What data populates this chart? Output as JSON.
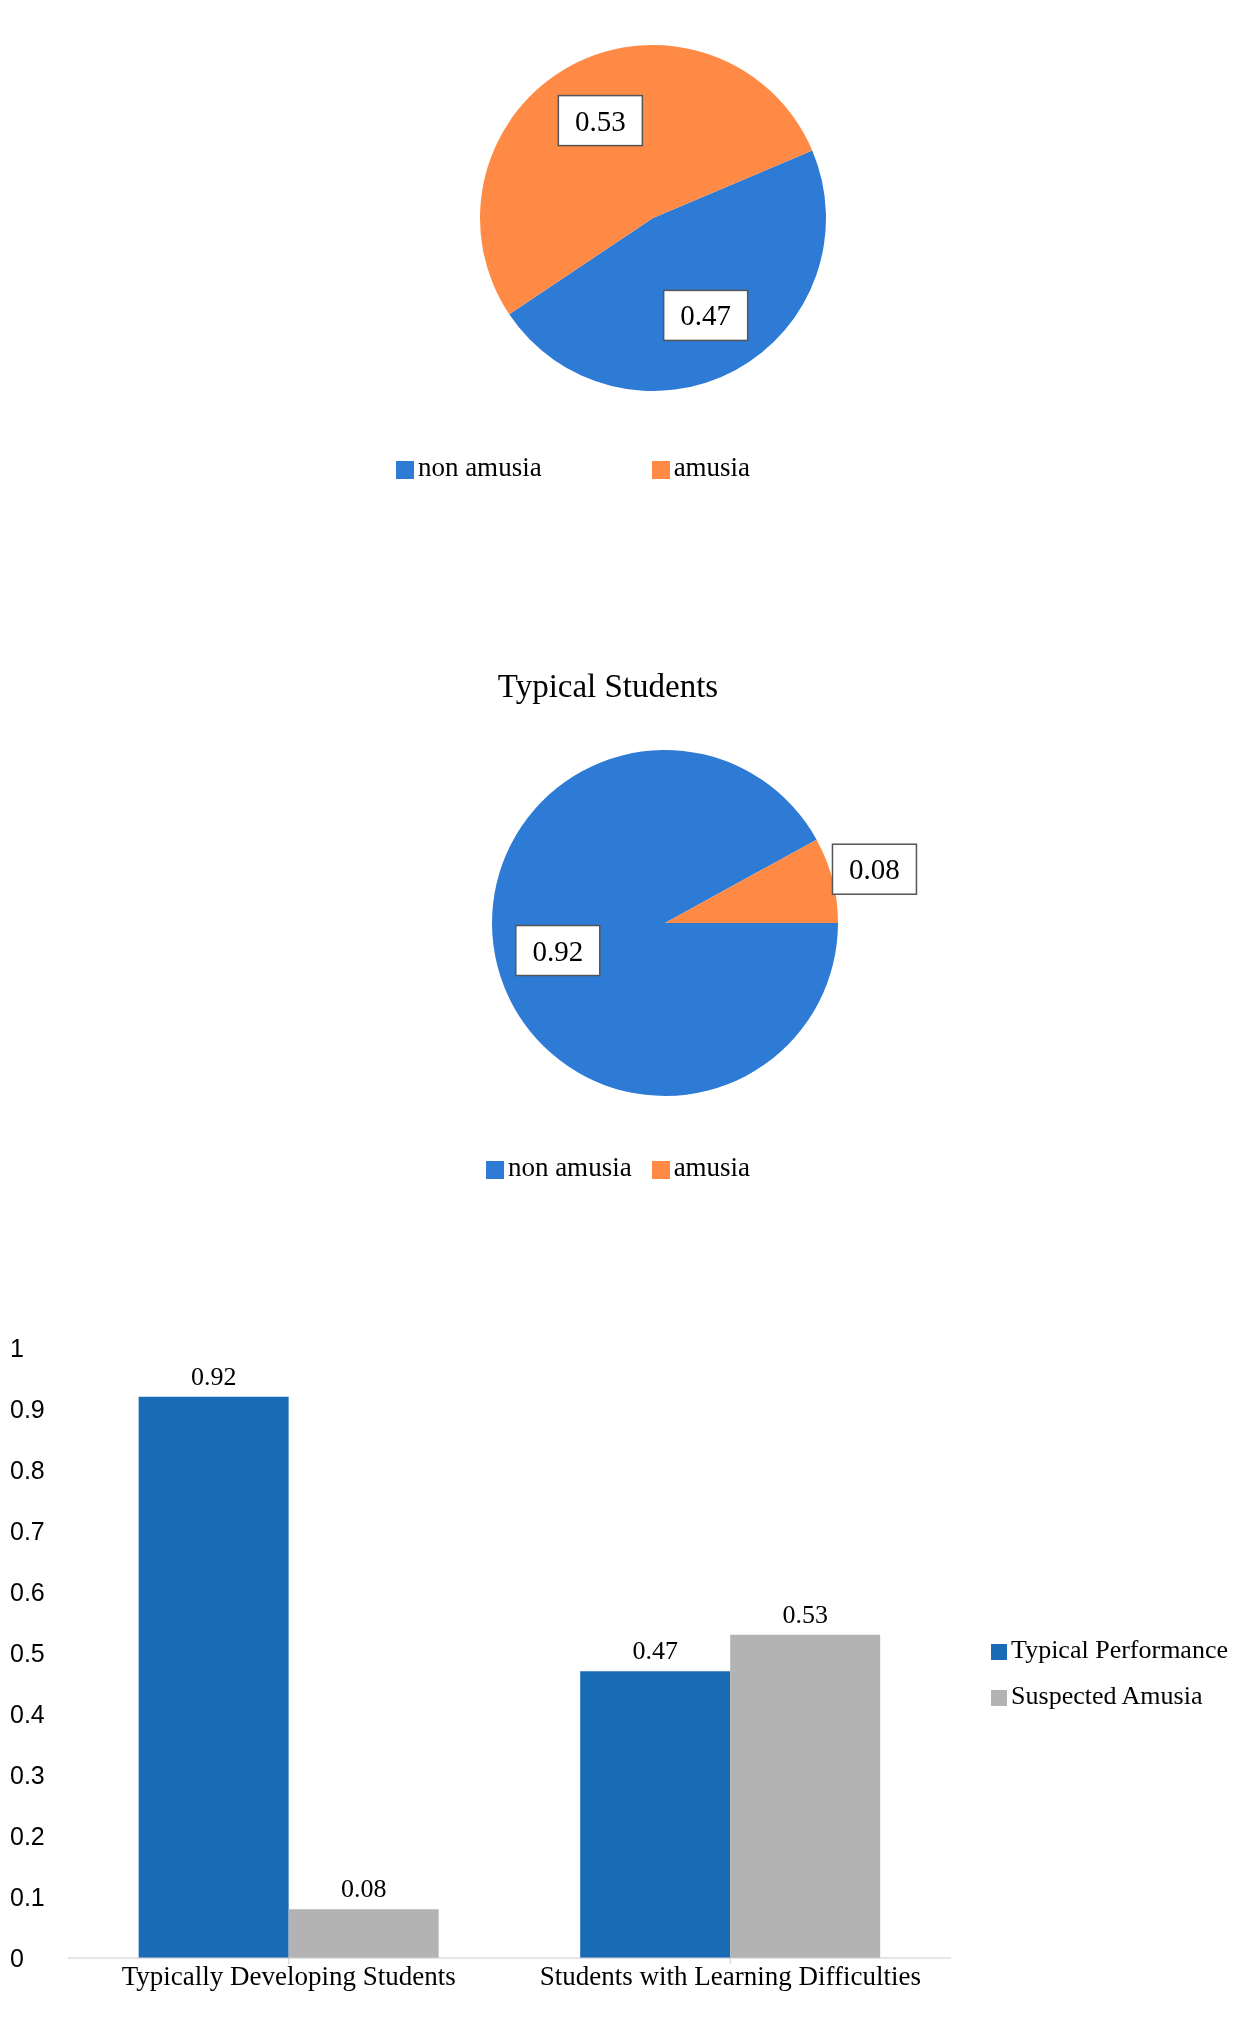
{
  "chart_data": [
    {
      "type": "pie",
      "categories": [
        "non amusia",
        "amusia"
      ],
      "values": [
        0.47,
        0.53
      ],
      "colors": [
        "#2e7bd6",
        "#ff8a45"
      ],
      "data_labels": true,
      "legend": "bottom"
    },
    {
      "type": "pie",
      "title": "Typical Students",
      "categories": [
        "non amusia",
        "amusia"
      ],
      "values": [
        0.92,
        0.08
      ],
      "colors": [
        "#2e7bd6",
        "#ff8a45"
      ],
      "data_labels": true,
      "legend": "bottom"
    },
    {
      "type": "bar",
      "categories": [
        "Typically Developing Students",
        "Students with Learning Difficulties"
      ],
      "series": [
        {
          "name": "Typical Performance",
          "color": "#1a6bb5",
          "values": [
            0.92,
            0.47
          ]
        },
        {
          "name": "Suspected Amusia",
          "color": "#b3b3b3",
          "values": [
            0.08,
            0.53
          ]
        }
      ],
      "ylim": [
        0,
        1
      ],
      "yticks": [
        0,
        0.1,
        0.2,
        0.3,
        0.4,
        0.5,
        0.6,
        0.7,
        0.8,
        0.9,
        1
      ],
      "data_labels": true,
      "legend": "right"
    }
  ]
}
